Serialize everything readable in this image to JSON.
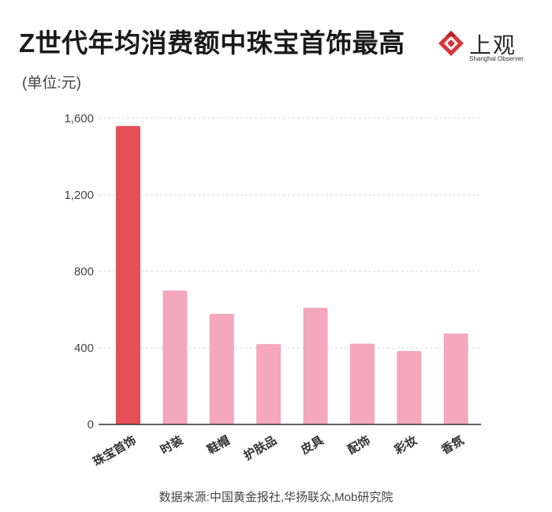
{
  "title": "Z世代年均消费额中珠宝首饰最高",
  "subtitle": "(单位:元)",
  "logo": {
    "name_cn": "上观",
    "name_en": "Shanghai Observer",
    "icon": "shanghai-observer-logo-icon"
  },
  "source": "数据来源:中国黄金报社,华扬联众,Mob研究院",
  "chart_data": {
    "type": "bar",
    "categories": [
      "珠宝首饰",
      "时装",
      "鞋帽",
      "护肤品",
      "皮具",
      "配饰",
      "彩妆",
      "香氛"
    ],
    "values": [
      1560,
      700,
      578,
      420,
      610,
      422,
      384,
      476
    ],
    "ylim": [
      0,
      1600
    ],
    "yticks": [
      0,
      400,
      800,
      1200,
      1600
    ],
    "ytick_labels": [
      "0",
      "400",
      "800",
      "1,200",
      "1,600"
    ],
    "grid": true,
    "highlight_index": 0,
    "colors": {
      "highlight": "#e55057",
      "default": "#f4a7bd",
      "grid": "#d9d9d9",
      "axis": "#333333"
    }
  }
}
